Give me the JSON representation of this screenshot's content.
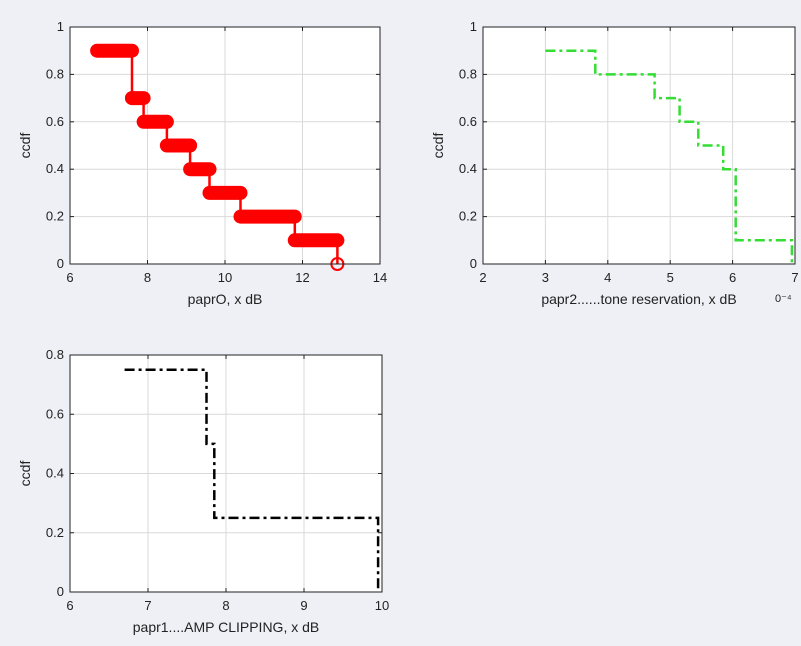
{
  "chart_data": [
    {
      "type": "line",
      "xlabel": "paprO, x dB",
      "ylabel": "ccdf",
      "xlim": [
        6,
        14
      ],
      "ylim": [
        0,
        1
      ],
      "xticks": [
        6,
        8,
        10,
        12,
        14
      ],
      "yticks": [
        0,
        0.2,
        0.4,
        0.6,
        0.8,
        1
      ],
      "ytick_labels": [
        "0",
        "0.2",
        "0.4",
        "0.6",
        "0.8",
        "1"
      ],
      "grid": true,
      "series": [
        {
          "color": "#ff0000",
          "style": "solid-thick-circle-markers",
          "x": [
            6.7,
            7.6,
            7.6,
            7.9,
            7.9,
            8.5,
            8.5,
            9.1,
            9.1,
            9.6,
            9.6,
            10.4,
            10.4,
            11.8,
            11.8,
            12.9,
            12.9
          ],
          "y": [
            0.9,
            0.9,
            0.7,
            0.7,
            0.6,
            0.6,
            0.5,
            0.5,
            0.4,
            0.4,
            0.3,
            0.3,
            0.2,
            0.2,
            0.1,
            0.1,
            0.0
          ]
        }
      ]
    },
    {
      "type": "line",
      "xlabel": "papr2......tone reservation, x dB",
      "xlabel_exponent": "0⁻⁴",
      "ylabel": "ccdf",
      "xlim": [
        2,
        7
      ],
      "ylim": [
        0,
        1
      ],
      "xticks": [
        2,
        3,
        4,
        5,
        6,
        7
      ],
      "yticks": [
        0,
        0.2,
        0.4,
        0.6,
        0.8,
        1
      ],
      "ytick_labels": [
        "0",
        "0.2",
        "0.4",
        "0.6",
        "0.8",
        "1"
      ],
      "grid": true,
      "series": [
        {
          "color": "#33dd33",
          "style": "dash-dot",
          "x": [
            3.0,
            3.8,
            3.8,
            4.75,
            4.75,
            5.15,
            5.15,
            5.45,
            5.45,
            5.85,
            5.85,
            6.05,
            6.05,
            6.95,
            6.95
          ],
          "y": [
            0.9,
            0.9,
            0.8,
            0.8,
            0.7,
            0.7,
            0.6,
            0.6,
            0.5,
            0.5,
            0.4,
            0.4,
            0.1,
            0.1,
            0.0
          ]
        }
      ]
    },
    {
      "type": "line",
      "xlabel": "papr1....AMP CLIPPING, x dB",
      "ylabel": "ccdf",
      "xlim": [
        6,
        10
      ],
      "ylim": [
        0,
        0.8
      ],
      "xticks": [
        6,
        7,
        8,
        9,
        10
      ],
      "yticks": [
        0,
        0.2,
        0.4,
        0.6,
        0.8
      ],
      "ytick_labels": [
        "0",
        "0.2",
        "0.4",
        "0.6",
        "0.8"
      ],
      "grid": true,
      "series": [
        {
          "color": "#000000",
          "style": "dash-dot",
          "x": [
            6.7,
            7.75,
            7.75,
            7.85,
            7.85,
            9.95,
            9.95
          ],
          "y": [
            0.75,
            0.75,
            0.5,
            0.5,
            0.25,
            0.25,
            0.0
          ]
        }
      ]
    }
  ]
}
